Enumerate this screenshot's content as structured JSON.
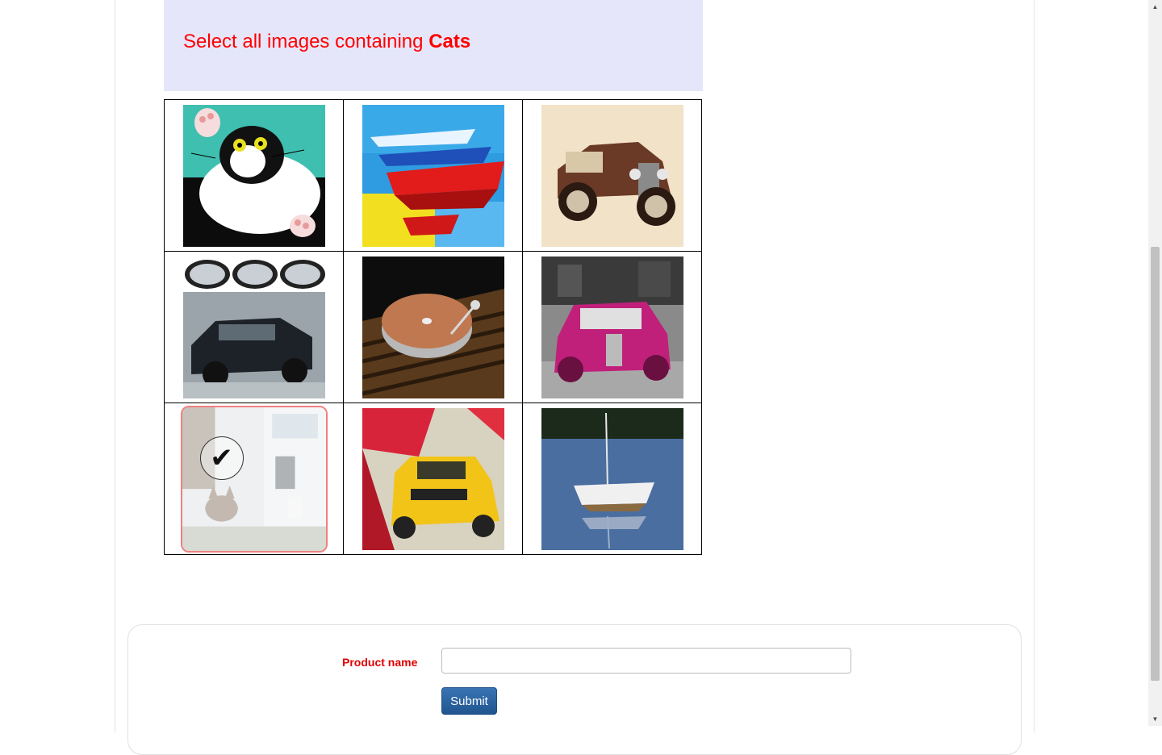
{
  "captcha": {
    "prompt_prefix": "Select all images containing",
    "prompt_target": "Cats",
    "tiles": [
      {
        "icon": "cat-painting-image",
        "selected": false
      },
      {
        "icon": "boats-painting-image",
        "selected": false
      },
      {
        "icon": "vintage-car-painting-image",
        "selected": false
      },
      {
        "icon": "car-mirrors-rain-image",
        "selected": false
      },
      {
        "icon": "turntable-image",
        "selected": false
      },
      {
        "icon": "pink-old-car-image",
        "selected": false
      },
      {
        "icon": "cat-in-room-image",
        "selected": true
      },
      {
        "icon": "yellow-taxi-painting-image",
        "selected": false
      },
      {
        "icon": "sailboat-image",
        "selected": false
      }
    ],
    "checkmark": "✔"
  },
  "form": {
    "product_label": "Product name",
    "product_value": "",
    "submit_label": "Submit"
  },
  "scrollbar": {
    "up_arrow": "▲",
    "down_arrow": "▼"
  },
  "colors": {
    "prompt": "#ff0000",
    "header_bg": "#e6e6fa",
    "label": "#e00000",
    "submit_bg": "#2a64a4"
  }
}
